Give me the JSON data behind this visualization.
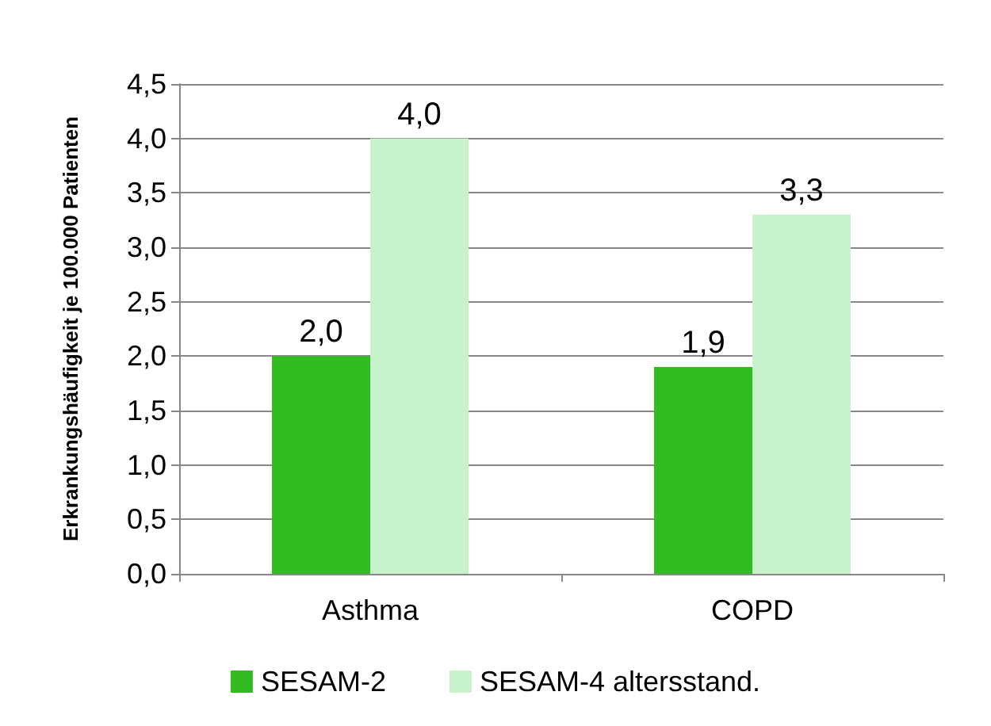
{
  "chart_data": {
    "type": "bar",
    "ylabel": "Erkrankungshäufigkeit je 100.000 Patienten",
    "categories": [
      "Asthma",
      "COPD"
    ],
    "series": [
      {
        "name": "SESAM-2",
        "color": "#33bb22",
        "values": [
          2.0,
          1.9
        ],
        "value_labels": [
          "2,0",
          "1,9"
        ]
      },
      {
        "name": "SESAM-4 altersstand.",
        "color": "#c8f2cc",
        "values": [
          4.0,
          3.3
        ],
        "value_labels": [
          "4,0",
          "3,3"
        ]
      }
    ],
    "ylim": [
      0,
      4.5
    ],
    "yticks": [
      {
        "value": 0,
        "label": "0,0"
      },
      {
        "value": 0.5,
        "label": "0,5"
      },
      {
        "value": 1,
        "label": "1,0"
      },
      {
        "value": 1.5,
        "label": "1,5"
      },
      {
        "value": 2,
        "label": "2,0"
      },
      {
        "value": 2.5,
        "label": "2,5"
      },
      {
        "value": 3,
        "label": "3,0"
      },
      {
        "value": 3.5,
        "label": "3,5"
      },
      {
        "value": 4,
        "label": "4,0"
      },
      {
        "value": 4.5,
        "label": "4,5"
      }
    ],
    "grid": "y",
    "legend": "bottom"
  }
}
